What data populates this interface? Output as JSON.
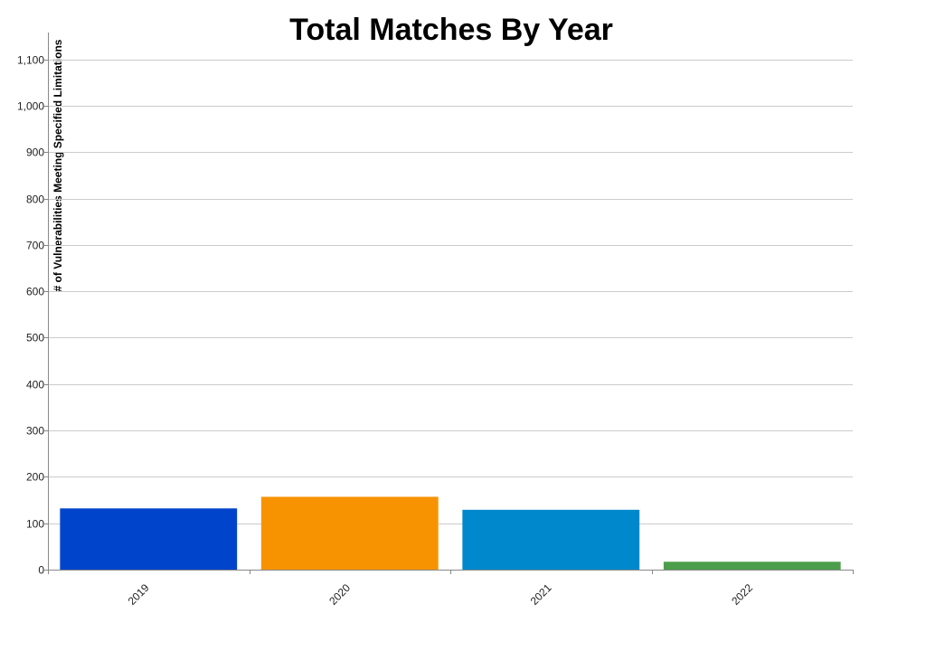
{
  "chart_data": {
    "type": "bar",
    "title": "Total Matches By Year",
    "xlabel": "",
    "ylabel": "# of Vulnerabilities Meeting Specified Limitations",
    "categories": [
      "2019",
      "2020",
      "2021",
      "2022"
    ],
    "values": [
      132,
      157,
      129,
      17
    ],
    "colors": [
      "#0044cc",
      "#f79300",
      "#0088cc",
      "#4c9e4c"
    ],
    "ylim": [
      0,
      1150
    ],
    "yticks": [
      0,
      100,
      200,
      300,
      400,
      500,
      600,
      700,
      800,
      900,
      1000,
      1100
    ],
    "ytick_labels": [
      "0",
      "100",
      "200",
      "300",
      "400",
      "500",
      "600",
      "700",
      "800",
      "900",
      "1,000",
      "1,100"
    ],
    "grid": true,
    "legend": "none"
  }
}
